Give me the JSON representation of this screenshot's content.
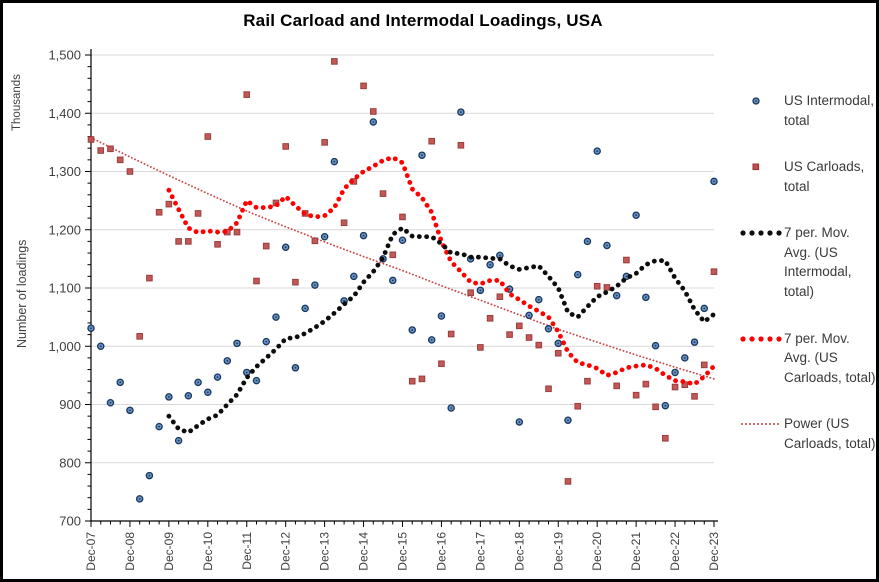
{
  "title": "Rail Carload and Intermodal Loadings, USA",
  "y_axis": {
    "unit_label": "Thousands",
    "axis_label": "Number of loadings",
    "min": 700,
    "max": 1500,
    "tick_step": 100,
    "tick_labels": [
      "700",
      "800",
      "900",
      "1,000",
      "1,100",
      "1,200",
      "1,300",
      "1,400",
      "1,500"
    ]
  },
  "x_axis": {
    "tick_labels": [
      "Dec-07",
      "Dec-08",
      "Dec-09",
      "Dec-10",
      "Dec-11",
      "Dec-12",
      "Dec-13",
      "Dec-14",
      "Dec-15",
      "Dec-16",
      "Dec-17",
      "Dec-18",
      "Dec-19",
      "Dec-20",
      "Dec-21",
      "Dec-22",
      "Dec-23"
    ],
    "minor_ticks_per_year": 4
  },
  "legend": {
    "items": [
      {
        "label": "US Intermodal, total",
        "marker": "blue-circle"
      },
      {
        "label": "US Carloads, total",
        "marker": "red-square"
      },
      {
        "label": "7 per. Mov. Avg. (US Intermodal, total)",
        "marker": "black-dotted-line"
      },
      {
        "label": "7 per. Mov. Avg. (US Carloads, total)",
        "marker": "red-dotted-line"
      },
      {
        "label": "Power (US Carloads, total)",
        "marker": "fine-red-dotted-line"
      }
    ]
  },
  "colors": {
    "intermodal_fill": "#6b93c4",
    "intermodal_edge": "#17375e",
    "carloads_fill": "#c0504d",
    "carloads_edge": "#943634",
    "ma_intermodal": "#0d0d0d",
    "ma_carloads": "#ff0000",
    "power_line": "#cc4444",
    "gridline": "#d9d9d9",
    "axis": "#595959",
    "tick_text": "#404040"
  },
  "chart_data": {
    "type": "scatter",
    "title": "Rail Carload and Intermodal Loadings, USA",
    "xlabel": "",
    "ylabel": "Number of loadings (Thousands)",
    "ylim": [
      700,
      1500
    ],
    "x_start": "Dec-07",
    "x_end": "Dec-23",
    "x_interval": "quarterly",
    "grid": "horizontal",
    "legend_position": "right",
    "series": [
      {
        "name": "US Intermodal, total",
        "type": "scatter",
        "marker": "circle",
        "values": [
          1031,
          1000,
          903,
          938,
          890,
          738,
          778,
          862,
          913,
          838,
          915,
          938,
          921,
          947,
          975,
          1005,
          955,
          941,
          1008,
          1050,
          1170,
          963,
          1065,
          1105,
          1188,
          1317,
          1078,
          1120,
          1190,
          1385,
          1150,
          1113,
          1182,
          1028,
          1328,
          1011,
          1052,
          894,
          1402,
          1150,
          1096,
          1140,
          1156,
          1098,
          870,
          1053,
          1080,
          1030,
          1005,
          873,
          1123,
          1180,
          1335,
          1173,
          1087,
          1120,
          1225,
          1084,
          1001,
          898,
          955,
          980,
          1007,
          1065,
          1283
        ]
      },
      {
        "name": "US Carloads, total",
        "type": "scatter",
        "marker": "square",
        "values": [
          1355,
          1336,
          1339,
          1320,
          1300,
          1017,
          1117,
          1230,
          1244,
          1180,
          1180,
          1228,
          1360,
          1175,
          1196,
          1196,
          1432,
          1112,
          1172,
          1246,
          1343,
          1110,
          1228,
          1181,
          1350,
          1489,
          1212,
          1283,
          1447,
          1403,
          1262,
          1157,
          1222,
          940,
          944,
          1352,
          970,
          1021,
          1345,
          1092,
          998,
          1048,
          1085,
          1020,
          1035,
          1015,
          1002,
          927,
          988,
          768,
          897,
          940,
          1103,
          1101,
          932,
          1148,
          916,
          935,
          896,
          842,
          930,
          934,
          914,
          968,
          1128
        ]
      },
      {
        "name": "7 per. Mov. Avg. (US Intermodal, total)",
        "type": "dotted-line",
        "start_index": 8,
        "values": [
          880,
          858,
          852,
          864,
          875,
          882,
          900,
          917,
          946,
          965,
          980,
          995,
          1013,
          1015,
          1022,
          1032,
          1043,
          1057,
          1072,
          1086,
          1110,
          1128,
          1152,
          1192,
          1203,
          1189,
          1188,
          1188,
          1176,
          1160,
          1159,
          1153,
          1153,
          1151,
          1150,
          1138,
          1132,
          1135,
          1138,
          1120,
          1100,
          1058,
          1050,
          1068,
          1085,
          1093,
          1103,
          1117,
          1125,
          1140,
          1147,
          1147,
          1117,
          1095,
          1063,
          1042,
          1055
        ]
      },
      {
        "name": "7 per. Mov. Avg. (US Carloads, total)",
        "type": "dotted-line",
        "start_index": 8,
        "values": [
          1268,
          1235,
          1203,
          1195,
          1198,
          1196,
          1197,
          1212,
          1250,
          1238,
          1238,
          1241,
          1257,
          1241,
          1227,
          1222,
          1224,
          1238,
          1270,
          1287,
          1300,
          1309,
          1319,
          1324,
          1315,
          1270,
          1255,
          1230,
          1180,
          1145,
          1128,
          1110,
          1107,
          1113,
          1113,
          1090,
          1080,
          1069,
          1060,
          1050,
          1025,
          990,
          972,
          968,
          962,
          950,
          955,
          963,
          966,
          968,
          962,
          950,
          941,
          939,
          935,
          948,
          966
        ]
      },
      {
        "name": "Power (US Carloads, total)",
        "type": "fine-dotted-trendline",
        "x_interval": "yearly",
        "values": [
          1358,
          1325,
          1293,
          1262,
          1232,
          1205,
          1179,
          1154,
          1130,
          1104,
          1079,
          1054,
          1029,
          1007,
          985,
          964,
          944
        ]
      }
    ]
  }
}
